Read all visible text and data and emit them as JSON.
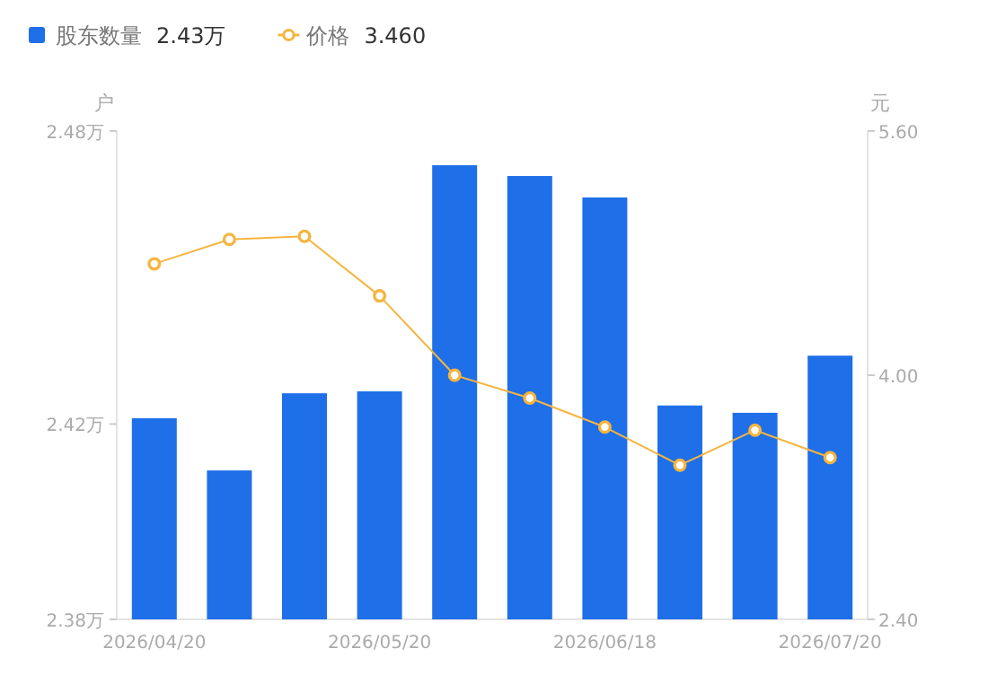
{
  "chart_data": {
    "type": "bar",
    "ylabel": "户",
    "y2label": "元",
    "categories": [
      "2026/04/20",
      null,
      null,
      "2026/05/20",
      null,
      null,
      "2026/06/18",
      null,
      null,
      "2026/07/20"
    ],
    "series": [
      {
        "name": "股东数量",
        "color": "#1f6fe8",
        "values": [
          2.4212,
          2.4105,
          2.4263,
          2.4267,
          2.473,
          2.4708,
          2.4664,
          2.4238,
          2.4223,
          2.434
        ]
      },
      {
        "name": "价格",
        "type": "line",
        "axis": "y2",
        "color": "#f5b53f",
        "marker": "circle",
        "values": [
          4.73,
          4.89,
          4.91,
          4.52,
          4.0,
          3.85,
          3.66,
          3.41,
          3.64,
          3.46
        ]
      }
    ],
    "ylim": [
      2.38,
      2.48
    ],
    "yticks": [
      {
        "value": 2.38,
        "label": "2.38万"
      },
      {
        "value": 2.42,
        "label": "2.42万"
      },
      {
        "value": 2.48,
        "label": "2.48万"
      }
    ],
    "y2lim": [
      2.4,
      5.6
    ],
    "y2ticks": [
      {
        "value": 2.4,
        "label": "2.40"
      },
      {
        "value": 4.0,
        "label": "4.00"
      },
      {
        "value": 5.6,
        "label": "5.60"
      }
    ],
    "legend": "top left",
    "annotations": [
      "2.43万",
      "3.460"
    ],
    "grid": false
  }
}
